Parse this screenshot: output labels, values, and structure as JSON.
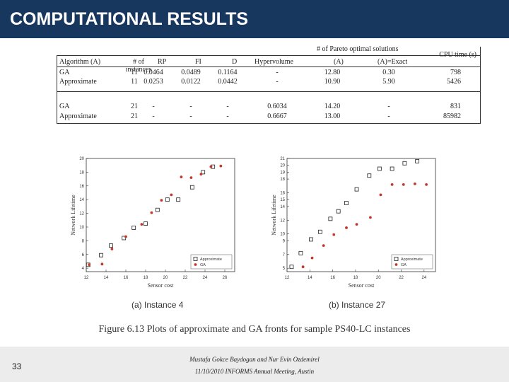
{
  "slide": {
    "title": "COMPUTATIONAL RESULTS",
    "number": "33",
    "footer_line1": "Mustafa Gokce Baydogan and Nur Evin Ozdemirel",
    "footer_line2": "11/10/2010 INFORMS Annual Meeting, Austin"
  },
  "table": {
    "group_header": "# of Pareto optimal solutions",
    "headers": [
      "Algorithm (A)",
      "# of instances",
      "RP",
      "FI",
      "D",
      "Hypervolume",
      "(A)",
      "(A)=Exact",
      "CPU time (s)"
    ],
    "rows": [
      [
        "GA",
        "11",
        "0.0464",
        "0.0489",
        "0.1164",
        "-",
        "12.80",
        "0.30",
        "798"
      ],
      [
        "Approximate",
        "11",
        "0.0253",
        "0.0122",
        "0.0442",
        "-",
        "10.90",
        "5.90",
        "5426"
      ],
      [
        "GA",
        "21",
        "-",
        "-",
        "-",
        "0.6034",
        "14.20",
        "-",
        "831"
      ],
      [
        "Approximate",
        "21",
        "-",
        "-",
        "-",
        "0.6667",
        "13.00",
        "-",
        "85982"
      ]
    ]
  },
  "figure": {
    "caption": "Figure 6.13 Plots of approximate and GA fronts for sample PS40-LC instances",
    "subcaption_a": "(a) Instance 4",
    "subcaption_b": "(b) Instance 27"
  },
  "chart_data": [
    {
      "type": "scatter",
      "xlabel": "Sensor cost",
      "ylabel": "Network Lifetime",
      "xlim": [
        12,
        27
      ],
      "ylim": [
        3.5,
        20
      ],
      "xticks": [
        12,
        14,
        16,
        18,
        20,
        22,
        24,
        26
      ],
      "yticks": [
        4,
        6,
        8,
        10,
        12,
        14,
        16,
        18,
        20
      ],
      "legend": "bottom-right",
      "series": [
        {
          "name": "Approximate",
          "marker": "square-open",
          "color": "#222222",
          "x": [
            12.2,
            13.5,
            14.5,
            15.8,
            16.8,
            18,
            19.2,
            20.2,
            21.3,
            22.7,
            23.8,
            24.8
          ],
          "y": [
            4.5,
            5.9,
            7.3,
            8.4,
            9.9,
            10.5,
            12.5,
            14.0,
            14.0,
            15.8,
            18.0,
            18.8
          ]
        },
        {
          "name": "GA",
          "marker": "dot",
          "color": "#c0392b",
          "x": [
            12.3,
            13.6,
            14.6,
            16.0,
            17.6,
            18.6,
            19.6,
            20.6,
            21.6,
            22.6,
            23.6,
            24.6,
            25.6
          ],
          "y": [
            4.5,
            4.6,
            6.8,
            8.6,
            10.4,
            12.1,
            13.9,
            14.7,
            17.3,
            17.2,
            17.7,
            18.8,
            18.9
          ]
        }
      ]
    },
    {
      "type": "scatter",
      "xlabel": "Sensor cost",
      "ylabel": "Network Lifetime",
      "xlim": [
        12,
        25
      ],
      "ylim": [
        4.5,
        21
      ],
      "xticks": [
        12,
        14,
        16,
        18,
        20,
        22,
        24
      ],
      "yticks": [
        5,
        7,
        9,
        10,
        12,
        14,
        15,
        16,
        18,
        19,
        20,
        21
      ],
      "ytick_values": [
        5,
        6,
        7,
        8,
        9,
        10,
        11,
        12,
        13,
        14,
        15,
        16,
        17,
        18,
        19,
        20,
        21
      ],
      "legend": "bottom-right",
      "series": [
        {
          "name": "Approximate",
          "marker": "square-open",
          "color": "#222222",
          "x": [
            12.4,
            13.2,
            14.1,
            14.9,
            15.8,
            16.5,
            17.2,
            18.1,
            19.2,
            20.1,
            21.2,
            22.3,
            23.4
          ],
          "y": [
            5.2,
            7.2,
            9.2,
            10.3,
            12.2,
            13.3,
            14.5,
            16.5,
            18.5,
            19.5,
            19.5,
            20.3,
            20.6
          ]
        },
        {
          "name": "GA",
          "marker": "dot",
          "color": "#c0392b",
          "x": [
            13.4,
            14.2,
            15.2,
            16.1,
            17.2,
            18.1,
            19.3,
            20.2,
            21.2,
            22.2,
            23.2,
            24.2
          ],
          "y": [
            5.2,
            6.5,
            8.3,
            9.9,
            10.9,
            11.4,
            12.4,
            15.7,
            17.2,
            17.2,
            17.3,
            17.2
          ]
        }
      ]
    }
  ]
}
